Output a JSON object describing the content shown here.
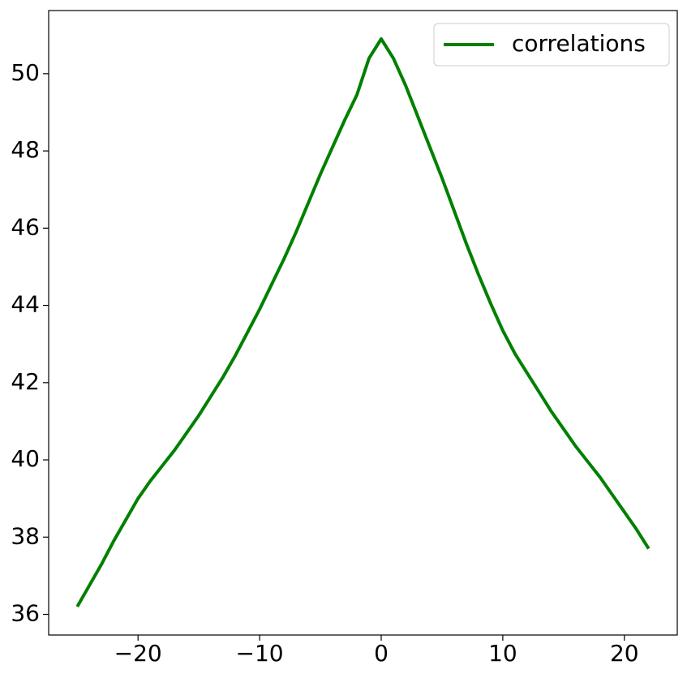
{
  "chart_data": {
    "type": "line",
    "x": [
      -25,
      -24,
      -23,
      -22,
      -21,
      -20,
      -19,
      -18,
      -17,
      -16,
      -15,
      -14,
      -13,
      -12,
      -11,
      -10,
      -9,
      -8,
      -7,
      -6,
      -5,
      -4,
      -3,
      -2,
      -1,
      0,
      1,
      2,
      3,
      4,
      5,
      6,
      7,
      8,
      9,
      10,
      11,
      12,
      13,
      14,
      15,
      16,
      17,
      18,
      19,
      20,
      21,
      22
    ],
    "series": [
      {
        "name": "correlations",
        "color": "#008000",
        "values": [
          36.2,
          36.75,
          37.3,
          37.9,
          38.45,
          39.0,
          39.45,
          39.85,
          40.25,
          40.7,
          41.15,
          41.65,
          42.15,
          42.7,
          43.3,
          43.9,
          44.55,
          45.2,
          45.9,
          46.65,
          47.4,
          48.1,
          48.8,
          49.45,
          50.4,
          50.9,
          50.4,
          49.7,
          48.9,
          48.1,
          47.3,
          46.45,
          45.6,
          44.8,
          44.05,
          43.35,
          42.75,
          42.25,
          41.75,
          41.25,
          40.8,
          40.35,
          39.95,
          39.55,
          39.1,
          38.65,
          38.2,
          37.7
        ]
      }
    ],
    "xlim": [
      -27.35,
      24.35
    ],
    "xticks": [
      {
        "value": -20,
        "label": "−20"
      },
      {
        "value": -10,
        "label": "−10"
      },
      0,
      10,
      20
    ],
    "ylim": [
      35.465,
      51.635
    ],
    "yticks": [
      36,
      38,
      40,
      42,
      44,
      46,
      48,
      50
    ],
    "grid": false,
    "legend": "upper right"
  }
}
